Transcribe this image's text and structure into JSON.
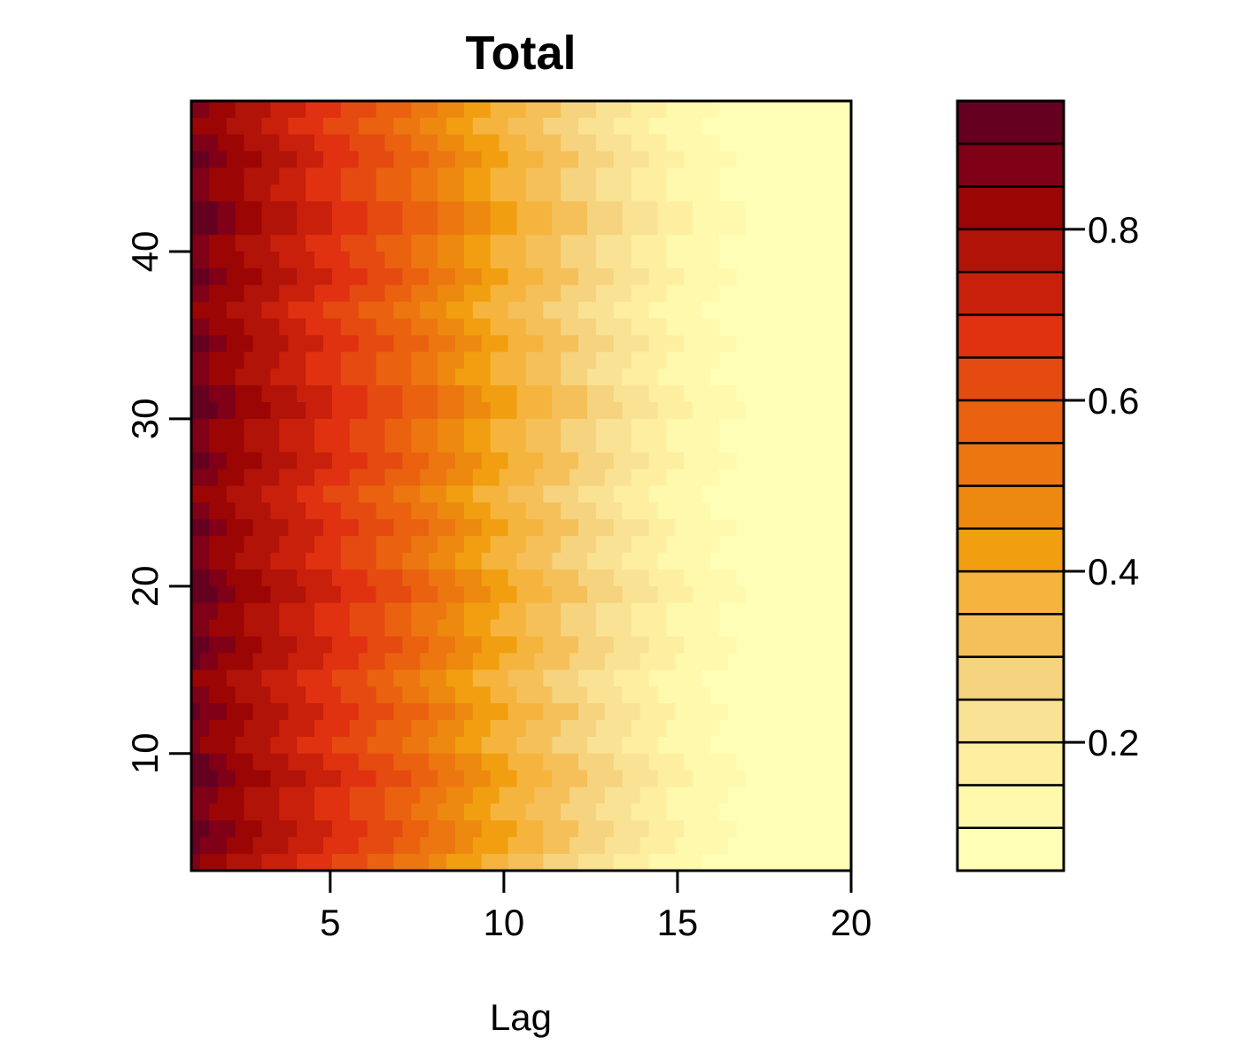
{
  "chart_data": {
    "type": "heatmap",
    "title": "Total",
    "xlabel": "Lag",
    "ylabel": "",
    "xlim": [
      1,
      20
    ],
    "ylim": [
      49,
      3
    ],
    "x_ticks": [
      5,
      10,
      15,
      20
    ],
    "y_ticks": [
      10,
      20,
      30,
      40
    ],
    "x_tick_labels": [
      "5",
      "10",
      "15",
      "20"
    ],
    "y_tick_labels": [
      "10",
      "20",
      "30",
      "40"
    ],
    "lag_profile": {
      "lag": [
        1,
        2,
        3,
        4,
        5,
        6,
        7,
        8,
        9,
        10,
        11,
        12,
        13,
        14,
        15,
        16,
        17,
        18,
        19,
        20
      ],
      "value": [
        0.91,
        0.83,
        0.78,
        0.73,
        0.68,
        0.63,
        0.58,
        0.52,
        0.45,
        0.39,
        0.34,
        0.29,
        0.24,
        0.19,
        0.14,
        0.11,
        0.08,
        0.06,
        0.05,
        0.05
      ]
    },
    "colorbar": {
      "levels": [
        0.05,
        0.1,
        0.15,
        0.2,
        0.25,
        0.3,
        0.35,
        0.4,
        0.45,
        0.5,
        0.55,
        0.6,
        0.65,
        0.7,
        0.75,
        0.8,
        0.85,
        0.9,
        0.95
      ],
      "ticks": [
        0.2,
        0.4,
        0.6,
        0.8
      ],
      "tick_labels": [
        "0.2",
        "0.4",
        "0.6",
        "0.8"
      ],
      "colors": [
        "#FFFFB8",
        "#FFF9AE",
        "#FDEEA0",
        "#FAE294",
        "#F6D37E",
        "#F5C05A",
        "#F4B43E",
        "#F19F10",
        "#EE8910",
        "#EC7710",
        "#EA620F",
        "#E54B10",
        "#E03210",
        "#C9200C",
        "#B21308",
        "#9B0604",
        "#800017",
        "#650021"
      ]
    }
  }
}
